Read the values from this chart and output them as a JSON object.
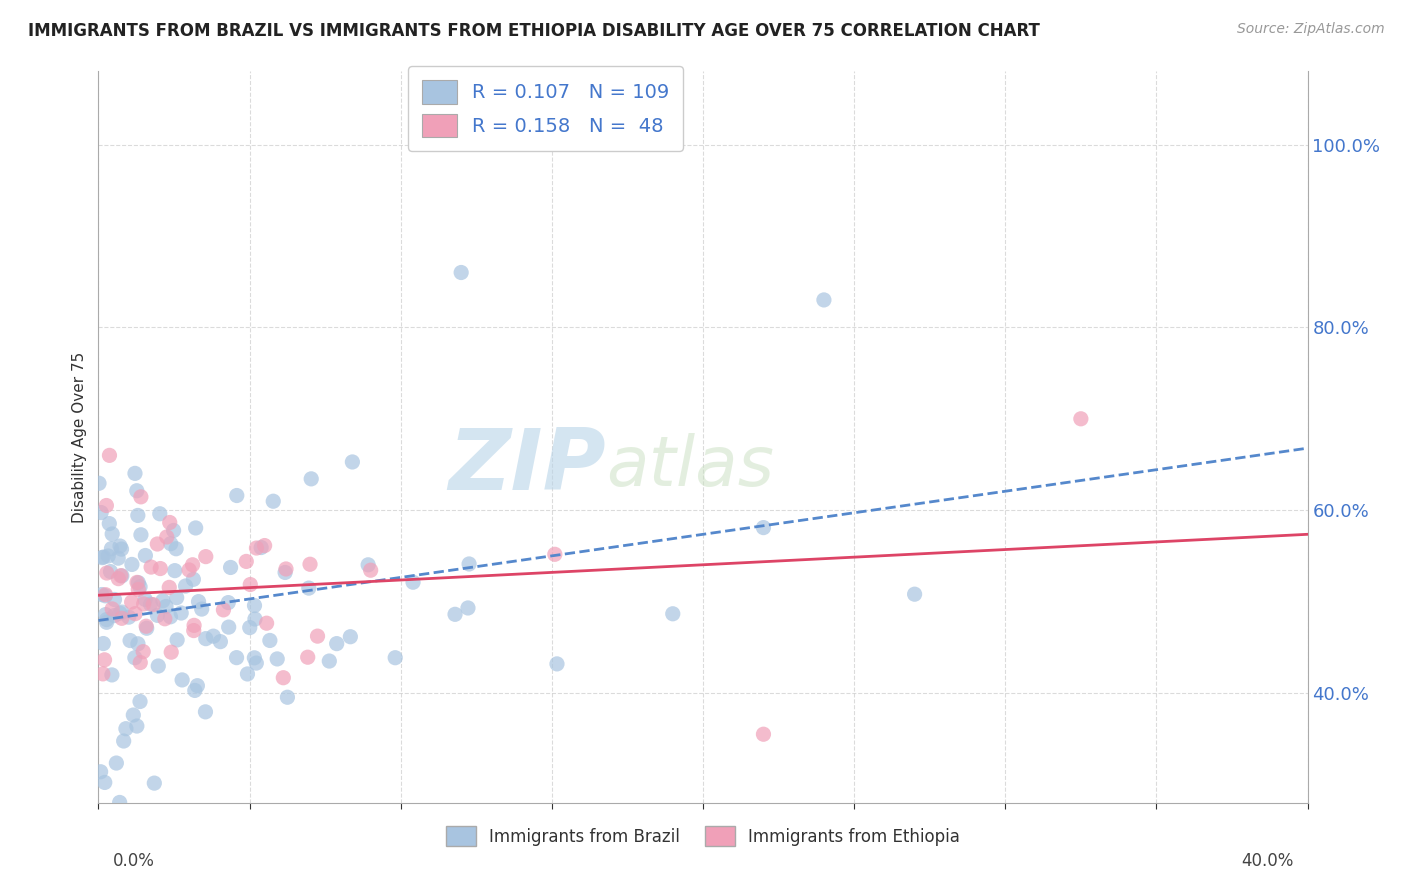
{
  "title": "IMMIGRANTS FROM BRAZIL VS IMMIGRANTS FROM ETHIOPIA DISABILITY AGE OVER 75 CORRELATION CHART",
  "source": "Source: ZipAtlas.com",
  "ylabel": "Disability Age Over 75",
  "legend_brazil": {
    "R": 0.107,
    "N": 109,
    "color": "#a8c4e0",
    "label": "Immigrants from Brazil"
  },
  "legend_ethiopia": {
    "R": 0.158,
    "N": 48,
    "color": "#f0a0b8",
    "label": "Immigrants from Ethiopia"
  },
  "xlim": [
    0.0,
    0.4
  ],
  "ylim": [
    0.28,
    1.08
  ],
  "yticks": [
    0.4,
    0.6,
    0.8,
    1.0
  ],
  "ytick_labels": [
    "40.0%",
    "60.0%",
    "80.0%",
    "100.0%"
  ],
  "watermark_zip": "ZIP",
  "watermark_atlas": "atlas",
  "watermark_color": "#c8dff0",
  "background_color": "#ffffff",
  "grid_color": "#cccccc",
  "trend_brazil_color": "#5588cc",
  "trend_ethiopia_color": "#dd4466",
  "scatter_brazil_color": "#a8c4e0",
  "scatter_ethiopia_color": "#f0a0b8",
  "title_fontsize": 12,
  "source_fontsize": 10
}
